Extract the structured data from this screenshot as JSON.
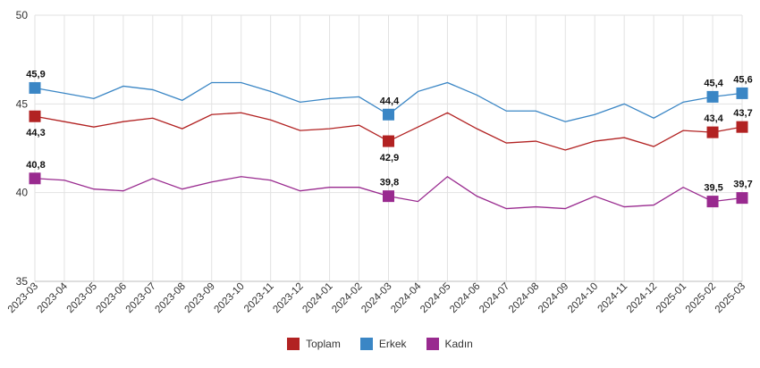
{
  "chart_data": {
    "type": "line",
    "categories": [
      "2023-03",
      "2023-04",
      "2023-05",
      "2023-06",
      "2023-07",
      "2023-08",
      "2023-09",
      "2023-10",
      "2023-11",
      "2023-12",
      "2024-01",
      "2024-02",
      "2024-03",
      "2024-04",
      "2024-05",
      "2024-06",
      "2024-07",
      "2024-08",
      "2024-09",
      "2024-10",
      "2024-11",
      "2024-12",
      "2025-01",
      "2025-02",
      "2025-03"
    ],
    "ylim": [
      35,
      50
    ],
    "yticks": [
      "35",
      "40",
      "45",
      "50"
    ],
    "grid": "vertical and horizontal",
    "legend_position": "bottom",
    "series": [
      {
        "name": "Toplam",
        "color": "#b22222",
        "values": [
          44.3,
          44.0,
          43.7,
          44.0,
          44.2,
          43.6,
          44.4,
          44.5,
          44.1,
          43.5,
          43.6,
          43.8,
          42.9,
          43.7,
          44.5,
          43.6,
          42.8,
          42.9,
          42.4,
          42.9,
          43.1,
          42.6,
          43.5,
          43.4,
          43.7
        ],
        "labels": {
          "0": "44,3",
          "12": "42,9",
          "23": "43,4",
          "24": "43,7"
        }
      },
      {
        "name": "Erkek",
        "color": "#3a86c5",
        "values": [
          45.9,
          45.6,
          45.3,
          46.0,
          45.8,
          45.2,
          46.2,
          46.2,
          45.7,
          45.1,
          45.3,
          45.4,
          44.4,
          45.7,
          46.2,
          45.5,
          44.6,
          44.6,
          44.0,
          44.4,
          45.0,
          44.2,
          45.1,
          45.4,
          45.6
        ],
        "labels": {
          "0": "45,9",
          "12": "44,4",
          "23": "45,4",
          "24": "45,6"
        }
      },
      {
        "name": "Kadın",
        "color": "#992a8f",
        "values": [
          40.8,
          40.7,
          40.2,
          40.1,
          40.8,
          40.2,
          40.6,
          40.9,
          40.7,
          40.1,
          40.3,
          40.3,
          39.8,
          39.5,
          40.9,
          39.8,
          39.1,
          39.2,
          39.1,
          39.8,
          39.2,
          39.3,
          40.3,
          39.5,
          39.7
        ],
        "labels": {
          "0": "40,8",
          "12": "39,8",
          "23": "39,5",
          "24": "39,7"
        }
      }
    ]
  }
}
